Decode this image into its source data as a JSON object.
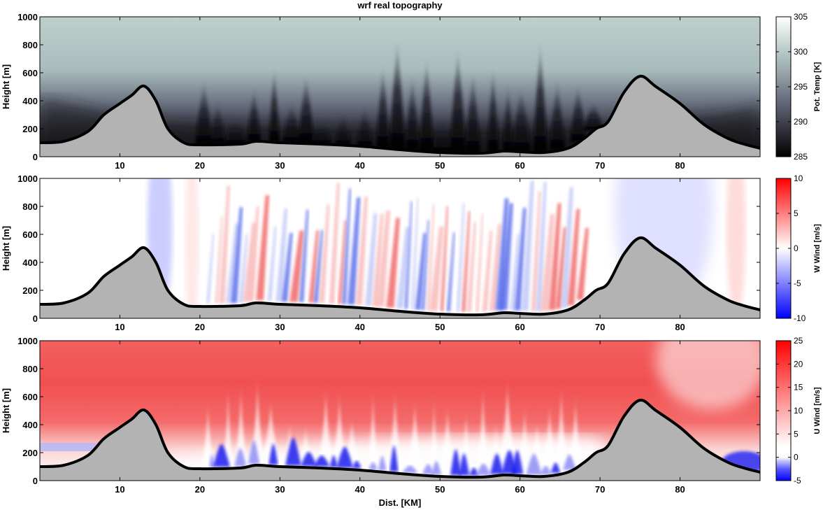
{
  "title": "wrf real topography",
  "chart_data": [
    {
      "type": "heatmap",
      "panel": "potential-temperature",
      "xlabel": "",
      "ylabel": "Height [m]",
      "xlim": [
        0,
        90
      ],
      "ylim": [
        0,
        1000
      ],
      "xticks": [
        10,
        20,
        30,
        40,
        50,
        60,
        70,
        80
      ],
      "xtick_labels": [
        "10",
        "20",
        "30",
        "40",
        "50",
        "60",
        "70",
        "80"
      ],
      "yticks": [
        0,
        200,
        400,
        600,
        800,
        1000
      ],
      "ytick_labels": [
        "0",
        "200",
        "400",
        "600",
        "800",
        "1000"
      ],
      "colorbar": {
        "label": "Pot. Temp [K]",
        "range": [
          285,
          305
        ],
        "ticks": [
          285,
          290,
          295,
          300,
          305
        ],
        "tick_labels": [
          "285",
          "290",
          "295",
          "300",
          "305"
        ],
        "colormap": [
          "#000000",
          "#34343f",
          "#656a7b",
          "#98a6aa",
          "#c3d4d1",
          "#ffffff"
        ]
      }
    },
    {
      "type": "heatmap",
      "panel": "vertical-wind",
      "xlabel": "",
      "ylabel": "Height [m]",
      "xlim": [
        0,
        90
      ],
      "ylim": [
        0,
        1000
      ],
      "xticks": [
        10,
        20,
        30,
        40,
        50,
        60,
        70,
        80
      ],
      "xtick_labels": [
        "10",
        "20",
        "30",
        "40",
        "50",
        "60",
        "70",
        "80"
      ],
      "yticks": [
        0,
        200,
        400,
        600,
        800,
        1000
      ],
      "ytick_labels": [
        "0",
        "200",
        "400",
        "600",
        "800",
        "1000"
      ],
      "colorbar": {
        "label": "W Wind [m/s]",
        "range": [
          -10,
          10
        ],
        "ticks": [
          -10,
          -5,
          0,
          5,
          10
        ],
        "tick_labels": [
          "-10",
          "-5",
          "0",
          "5",
          "10"
        ],
        "colormap": [
          "#0000ff",
          "#ffffff",
          "#ff0000"
        ]
      }
    },
    {
      "type": "heatmap",
      "panel": "horizontal-wind",
      "xlabel": "Dist. [KM]",
      "ylabel": "Height [m]",
      "xlim": [
        0,
        90
      ],
      "ylim": [
        0,
        1000
      ],
      "xticks": [
        10,
        20,
        30,
        40,
        50,
        60,
        70,
        80
      ],
      "xtick_labels": [
        "10",
        "20",
        "30",
        "40",
        "50",
        "60",
        "70",
        "80"
      ],
      "yticks": [
        0,
        200,
        400,
        600,
        800,
        1000
      ],
      "ytick_labels": [
        "0",
        "200",
        "400",
        "600",
        "800",
        "1000"
      ],
      "colorbar": {
        "label": "U Wind [m/s]",
        "range": [
          -5,
          25
        ],
        "ticks": [
          -5,
          0,
          5,
          10,
          15,
          20,
          25
        ],
        "tick_labels": [
          "-5",
          "0",
          "5",
          "10",
          "15",
          "20",
          "25"
        ],
        "colormap": [
          "#0000ff",
          "#ffffff",
          "#ff0000"
        ]
      }
    }
  ],
  "terrain": {
    "fill": "#b3b3b3",
    "distance_km": [
      0,
      3,
      6,
      8,
      10,
      11.5,
      13,
      14.5,
      16,
      18,
      20,
      25,
      27,
      30,
      35,
      40,
      45,
      50,
      55,
      58,
      60,
      63,
      66,
      68,
      69.5,
      71,
      73,
      75,
      77,
      80,
      83,
      86,
      88,
      90
    ],
    "height_m": [
      100,
      110,
      180,
      300,
      380,
      440,
      505,
      400,
      200,
      100,
      85,
      90,
      110,
      100,
      90,
      75,
      50,
      30,
      25,
      40,
      35,
      30,
      60,
      130,
      200,
      250,
      460,
      575,
      500,
      380,
      230,
      130,
      90,
      60
    ]
  }
}
